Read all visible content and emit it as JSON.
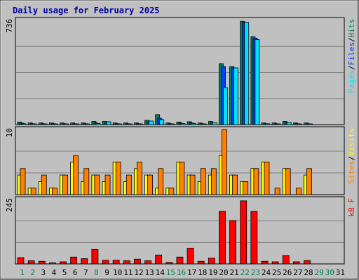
{
  "title": "Daily usage for February 2025",
  "colors": {
    "frame": "#c0c0c0",
    "plot": "#c0c0c0",
    "grid": "#808080",
    "title": "#0000a0",
    "hits": "#00805c",
    "files": "#0040ff",
    "pages": "#00e0ff",
    "visits": "#ffff00",
    "sites": "#ff8000",
    "kbytes": "#ff0000",
    "axis_text": "#000000",
    "weekend_text": "#00805c"
  },
  "chart_data": {
    "type": "bar",
    "title": "Daily usage for February 2025",
    "categories": [
      "1",
      "2",
      "3",
      "4",
      "5",
      "6",
      "7",
      "8",
      "9",
      "10",
      "11",
      "12",
      "13",
      "14",
      "15",
      "16",
      "17",
      "18",
      "19",
      "20",
      "21",
      "22",
      "23",
      "24",
      "25",
      "26",
      "27",
      "28",
      "29",
      "30",
      "31"
    ],
    "weekend_days": [
      "1",
      "2",
      "8",
      "15",
      "16",
      "22",
      "23",
      "29",
      "30"
    ],
    "panels": [
      {
        "id": "hits-files-pages",
        "max_label": "736",
        "ylim": [
          0,
          736
        ],
        "legend": [
          "Pages",
          "/",
          "Files",
          "/",
          "Hits"
        ],
        "legend_color_keys": [
          "pages",
          "axis_text",
          "files",
          "axis_text",
          "hits"
        ],
        "series": [
          {
            "name": "Hits",
            "color_key": "hits",
            "values": [
              18,
              12,
              12,
              12,
              12,
              12,
              12,
              22,
              22,
              12,
              12,
              12,
              30,
              70,
              12,
              18,
              20,
              12,
              22,
              430,
              410,
              730,
              620,
              12,
              12,
              22,
              12,
              12,
              null,
              null,
              null
            ]
          },
          {
            "name": "Files",
            "color_key": "files",
            "values": [
              10,
              6,
              6,
              6,
              6,
              6,
              6,
              12,
              12,
              6,
              6,
              6,
              20,
              45,
              6,
              10,
              12,
              6,
              14,
              410,
              400,
              720,
              610,
              6,
              6,
              14,
              6,
              6,
              null,
              null,
              null
            ]
          },
          {
            "name": "Pages",
            "color_key": "pages",
            "values": [
              6,
              4,
              4,
              4,
              4,
              4,
              4,
              8,
              20,
              4,
              4,
              4,
              25,
              35,
              4,
              8,
              8,
              4,
              14,
              260,
              400,
              720,
              600,
              6,
              4,
              16,
              4,
              4,
              null,
              null,
              null
            ]
          }
        ]
      },
      {
        "id": "visits-sites",
        "max_label": "10",
        "ylim": [
          0,
          10
        ],
        "legend": [
          "Sites",
          "/",
          "Visits"
        ],
        "legend_color_keys": [
          "sites",
          "axis_text",
          "visits"
        ],
        "series": [
          {
            "name": "Visits",
            "color_key": "visits",
            "values": [
              3,
              1,
              2,
              1,
              3,
              5,
              2,
              3,
              2,
              5,
              2,
              4,
              3,
              1,
              1,
              5,
              3,
              2,
              3,
              6,
              3,
              2,
              4,
              5,
              null,
              4,
              null,
              3,
              null,
              null,
              null
            ]
          },
          {
            "name": "Sites",
            "color_key": "sites",
            "values": [
              4,
              1,
              3,
              1,
              3,
              6,
              4,
              3,
              3,
              5,
              3,
              5,
              3,
              4,
              1,
              5,
              3,
              4,
              4,
              10,
              3,
              2,
              4,
              5,
              1,
              4,
              1,
              4,
              null,
              null,
              null
            ]
          }
        ]
      },
      {
        "id": "kbytes",
        "max_label": "245",
        "ylim": [
          0,
          245
        ],
        "legend": [
          "kB F"
        ],
        "legend_color_keys": [
          "kbytes"
        ],
        "series": [
          {
            "name": "kB F",
            "color_key": "kbytes",
            "values": [
              24,
              12,
              10,
              4,
              8,
              26,
              20,
              55,
              14,
              14,
              12,
              18,
              12,
              34,
              6,
              26,
              60,
              10,
              22,
              200,
              165,
              240,
              200,
              10,
              8,
              32,
              8,
              13,
              null,
              null,
              null
            ]
          }
        ]
      }
    ]
  }
}
